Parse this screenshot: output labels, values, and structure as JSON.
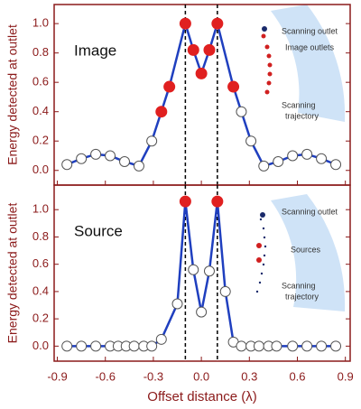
{
  "chart_data": [
    {
      "type": "line",
      "ylabel": "Energy detected at outlet",
      "color": "#1f3fbf",
      "x": [
        -0.84,
        -0.75,
        -0.66,
        -0.57,
        -0.48,
        -0.39,
        -0.31,
        -0.25,
        -0.2,
        -0.1,
        -0.05,
        0,
        0.05,
        0.1,
        0.2,
        0.25,
        0.31,
        0.39,
        0.48,
        0.57,
        0.66,
        0.75,
        0.84
      ],
      "values": [
        0.04,
        0.08,
        0.11,
        0.1,
        0.06,
        0.03,
        0.2,
        0.4,
        0.57,
        1.0,
        0.82,
        0.66,
        0.82,
        1.0,
        0.57,
        0.4,
        0.2,
        0.03,
        0.06,
        0.1,
        0.11,
        0.08,
        0.04
      ],
      "marker_fills": [
        "white",
        "white",
        "white",
        "white",
        "white",
        "white",
        "white",
        "#e02020",
        "#e02020",
        "#e02020",
        "#e02020",
        "#e02020",
        "#e02020",
        "#e02020",
        "#e02020",
        "white",
        "white",
        "white",
        "white",
        "white",
        "white",
        "white",
        "white"
      ],
      "xlim": [
        -0.92,
        0.93
      ],
      "ylim": [
        -0.1,
        1.13
      ],
      "xticks": [
        -0.9,
        -0.6,
        -0.3,
        0,
        0.3,
        0.6,
        0.9
      ],
      "yticks": [
        {
          "value": 0,
          "label": "0.0"
        },
        0.2,
        0.4,
        0.6,
        0.8,
        {
          "value": 1,
          "label": "1.0"
        }
      ],
      "vlines": [
        -0.1,
        0.1
      ],
      "annotations": {
        "panel_label": "Image",
        "scanning_outlet": "Scanning outlet",
        "outlets": "Image outlets",
        "trajectory": [
          "Scanning",
          "trajectory"
        ]
      }
    },
    {
      "type": "line",
      "ylabel": "Energy detected at outlet",
      "xlabel": "Offset distance (λ)",
      "color": "#1f3fbf",
      "x": [
        -0.84,
        -0.75,
        -0.66,
        -0.57,
        -0.52,
        -0.47,
        -0.42,
        -0.36,
        -0.31,
        -0.25,
        -0.15,
        -0.1,
        -0.05,
        0,
        0.05,
        0.1,
        0.15,
        0.2,
        0.25,
        0.31,
        0.36,
        0.42,
        0.47,
        0.57,
        0.66,
        0.75,
        0.84
      ],
      "values": [
        0,
        0,
        0,
        0,
        0,
        0,
        0,
        0,
        0,
        0.05,
        0.31,
        1.06,
        0.56,
        0.25,
        0.55,
        1.06,
        0.4,
        0.03,
        0,
        0,
        0,
        0,
        0,
        0,
        0,
        0,
        0
      ],
      "marker_fills": [
        "white",
        "white",
        "white",
        "white",
        "white",
        "white",
        "white",
        "white",
        "white",
        "white",
        "white",
        "#e02020",
        "white",
        "white",
        "white",
        "#e02020",
        "white",
        "white",
        "white",
        "white",
        "white",
        "white",
        "white",
        "white",
        "white",
        "white",
        "white"
      ],
      "xlim": [
        -0.92,
        0.93
      ],
      "ylim": [
        -0.11,
        1.18
      ],
      "xticks": [
        -0.9,
        -0.6,
        -0.3,
        {
          "value": 0,
          "label": "0.0"
        },
        0.3,
        0.6,
        0.9
      ],
      "yticks": [
        {
          "value": 0,
          "label": "0.0"
        },
        0.2,
        0.4,
        0.6,
        0.8,
        {
          "value": 1,
          "label": "1.0"
        }
      ],
      "vlines": [
        -0.1,
        0.1
      ],
      "annotations": {
        "panel_label": "Source",
        "scanning_outlet": "Scanning outlet",
        "outlets": "Sources",
        "trajectory": [
          "Scanning",
          "trajectory"
        ]
      }
    }
  ]
}
